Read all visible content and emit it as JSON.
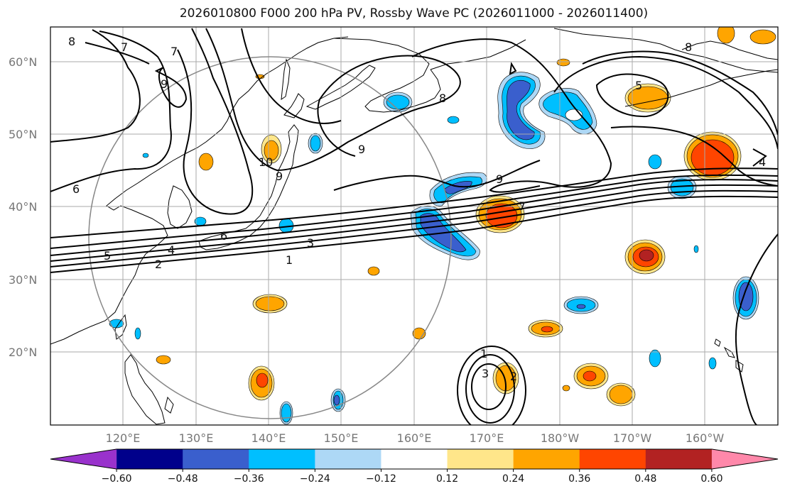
{
  "title": "2026010800 F000 200 hPa PV, Rossby Wave PC (2026011000 - 2026011400)",
  "lat_labels": [
    "60°N",
    "50°N",
    "40°N",
    "30°N",
    "20°N"
  ],
  "lon_labels": [
    "120°E",
    "130°E",
    "140°E",
    "150°E",
    "160°E",
    "170°E",
    "180°W",
    "170°W",
    "160°W"
  ],
  "colorbar": {
    "ticks": [
      "−0.60",
      "−0.48",
      "−0.36",
      "−0.24",
      "−0.12",
      "0.12",
      "0.24",
      "0.36",
      "0.48",
      "0.60"
    ],
    "colors": [
      "#9932cc",
      "#00008b",
      "#3a5fcd",
      "#00bfff",
      "#add8f6",
      "#ffffff",
      "#ffe68a",
      "#ffa500",
      "#ff4500",
      "#b22222",
      "#ff88aa"
    ]
  },
  "contour_labels": {
    "c8a": "8",
    "c7a": "7",
    "c7b": "7",
    "c9a": "9",
    "c6a": "6",
    "c10": "10",
    "c9b": "9",
    "c9c": "9",
    "c8b": "8",
    "c9d": "9",
    "c5a": "5",
    "c4": "4",
    "c6b": "6",
    "c3": "3",
    "c2": "2",
    "c1a": "1",
    "c1b": "1",
    "c2b": "2",
    "c3b": "3",
    "c8c": "8",
    "c5b": "5",
    "c7c": "7",
    "c4b": "4"
  }
}
